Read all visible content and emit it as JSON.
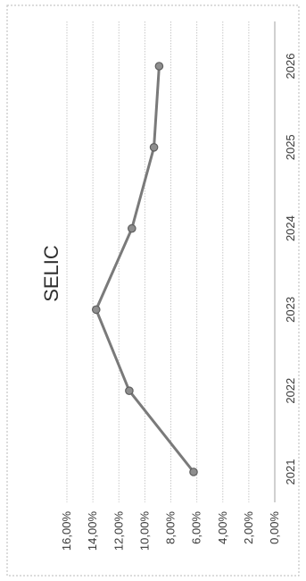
{
  "chart_data": {
    "type": "line",
    "title": "SELIC",
    "xlabel": "",
    "ylabel": "",
    "categories": [
      "2021",
      "2022",
      "2023",
      "2024",
      "2025",
      "2026"
    ],
    "series": [
      {
        "values": [
          6.25,
          11.2,
          13.75,
          11.0,
          9.3,
          8.9
        ]
      }
    ],
    "ylim": [
      0,
      16
    ],
    "ytick_labels": [
      "0,00%",
      "2,00%",
      "4,00%",
      "6,00%",
      "8,00%",
      "10,00%",
      "12,00%",
      "14,00%",
      "16,00%"
    ],
    "grid": true,
    "legend": "none",
    "orientation": "rotated-90-clockwise",
    "colors": {
      "line": "#7a7a7a",
      "marker_fill": "#8e8e8e",
      "marker_stroke": "#5e5e5e",
      "grid": "#c8c8c8",
      "border": "#b8b8b8"
    }
  }
}
